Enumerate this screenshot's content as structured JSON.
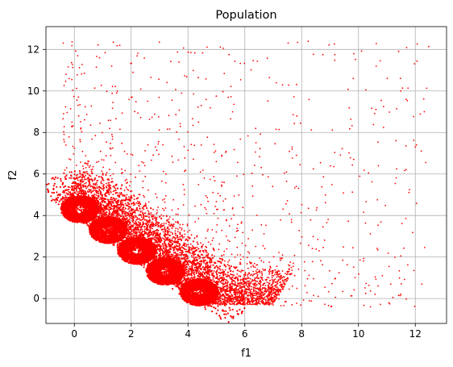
{
  "chart_data": {
    "type": "scatter",
    "title": "Population",
    "xlabel": "f1",
    "ylabel": "f2",
    "xlim": [
      -1.0,
      13.1
    ],
    "ylim": [
      -1.2,
      13.1
    ],
    "xticks": [
      0,
      2,
      4,
      6,
      8,
      10,
      12
    ],
    "yticks": [
      0,
      2,
      4,
      6,
      8,
      10,
      12
    ],
    "grid": true,
    "marker_color": "#ff0000",
    "point_clusters": [
      {
        "description": "dense ring cluster",
        "center": [
          0.2,
          4.3
        ],
        "count": 1200
      },
      {
        "description": "dense ring cluster",
        "center": [
          1.2,
          3.3
        ],
        "count": 1200
      },
      {
        "description": "dense ring cluster",
        "center": [
          2.2,
          2.3
        ],
        "count": 1200
      },
      {
        "description": "dense ring cluster",
        "center": [
          3.2,
          1.3
        ],
        "count": 1200
      },
      {
        "description": "dense ring cluster",
        "center": [
          4.4,
          0.3
        ],
        "count": 1200
      }
    ]
  }
}
